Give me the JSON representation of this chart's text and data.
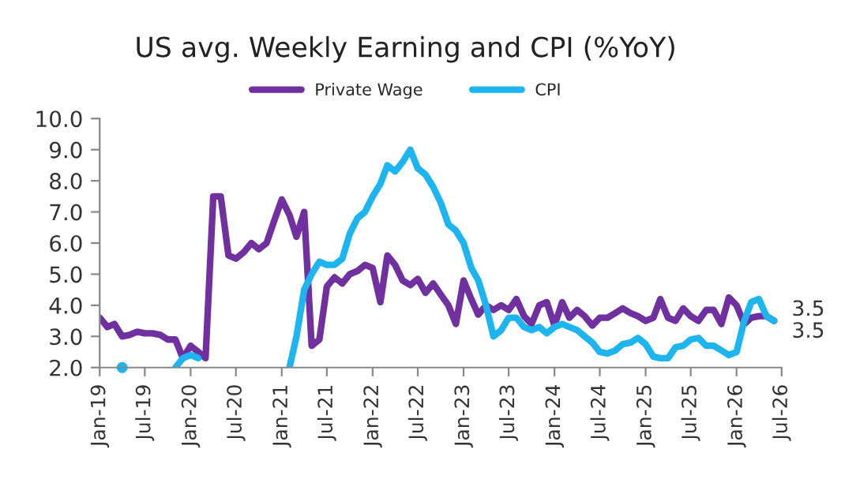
{
  "chart_data": {
    "type": "line",
    "title": "US avg. Weekly Earning and CPI (%YoY)",
    "x": [
      "2019-01",
      "2019-02",
      "2019-03",
      "2019-04",
      "2019-05",
      "2019-06",
      "2019-07",
      "2019-08",
      "2019-09",
      "2019-10",
      "2019-11",
      "2019-12",
      "2020-01",
      "2020-02",
      "2020-03",
      "2020-04",
      "2020-05",
      "2020-06",
      "2020-07",
      "2020-08",
      "2020-09",
      "2020-10",
      "2020-11",
      "2020-12",
      "2021-01",
      "2021-02",
      "2021-03",
      "2021-04",
      "2021-05",
      "2021-06",
      "2021-07",
      "2021-08",
      "2021-09",
      "2021-10",
      "2021-11",
      "2021-12",
      "2022-01",
      "2022-02",
      "2022-03",
      "2022-04",
      "2022-05",
      "2022-06",
      "2022-07",
      "2022-08",
      "2022-09",
      "2022-10",
      "2022-11",
      "2022-12",
      "2023-01",
      "2023-02",
      "2023-03",
      "2023-04",
      "2023-05",
      "2023-06",
      "2023-07",
      "2023-08",
      "2023-09",
      "2023-10",
      "2023-11",
      "2023-12",
      "2024-01",
      "2024-02",
      "2024-03",
      "2024-04",
      "2024-05",
      "2024-06",
      "2024-07",
      "2024-08",
      "2024-09",
      "2024-10",
      "2024-11",
      "2024-12",
      "2025-01",
      "2025-02",
      "2025-03",
      "2025-04",
      "2025-05",
      "2025-06",
      "2025-07",
      "2025-08",
      "2025-09",
      "2025-10",
      "2025-11",
      "2025-12",
      "2026-01",
      "2026-02",
      "2026-03",
      "2026-04",
      "2026-05",
      "2026-06"
    ],
    "series": [
      {
        "name": "Private Wage",
        "color": "#7030a0",
        "values": [
          3.6,
          3.3,
          3.4,
          3.0,
          3.05,
          3.15,
          3.1,
          3.1,
          3.05,
          2.9,
          2.9,
          2.3,
          2.7,
          2.5,
          2.3,
          7.5,
          7.5,
          5.6,
          5.5,
          5.7,
          6.0,
          5.8,
          6.0,
          6.7,
          7.4,
          6.9,
          6.2,
          7.0,
          2.7,
          2.9,
          4.6,
          4.9,
          4.7,
          5.0,
          5.1,
          5.3,
          5.2,
          4.1,
          5.6,
          5.3,
          4.8,
          4.65,
          4.85,
          4.4,
          4.7,
          4.35,
          4.0,
          3.4,
          4.8,
          4.2,
          3.7,
          4.0,
          3.85,
          4.0,
          3.85,
          4.2,
          3.65,
          3.4,
          4.0,
          4.1,
          3.35,
          4.1,
          3.6,
          3.85,
          3.65,
          3.35,
          3.6,
          3.6,
          3.75,
          3.9,
          3.75,
          3.65,
          3.5,
          3.6,
          4.2,
          3.6,
          3.5,
          3.9,
          3.65,
          3.5,
          3.85,
          3.85,
          3.4,
          4.25,
          4.0,
          3.4,
          3.6,
          3.65,
          3.65,
          3.5
        ],
        "value_labels": [
          null,
          null,
          null,
          null,
          null,
          null,
          null,
          null,
          null,
          null,
          null,
          null,
          null,
          null,
          null,
          null,
          null,
          null,
          null,
          null,
          null,
          null,
          null,
          null,
          null,
          null,
          null,
          null,
          null,
          null,
          null,
          null,
          null,
          null,
          null,
          null,
          null,
          null,
          null,
          null,
          null,
          null,
          null,
          null,
          null,
          null,
          null,
          null,
          null,
          null,
          null,
          null,
          null,
          null,
          null,
          null,
          null,
          null,
          null,
          null,
          null,
          null,
          null,
          null,
          null,
          null,
          null,
          null,
          null,
          null,
          null,
          null,
          null,
          null,
          null,
          null,
          null,
          null,
          null,
          null,
          null,
          null,
          null,
          null,
          null,
          null,
          null,
          null,
          null,
          "3.5"
        ]
      },
      {
        "name": "CPI",
        "color": "#1cb5f0",
        "values": [
          null,
          null,
          null,
          2.0,
          null,
          null,
          null,
          null,
          null,
          null,
          2.0,
          2.3,
          2.4,
          2.3,
          null,
          null,
          null,
          null,
          null,
          null,
          null,
          null,
          null,
          null,
          null,
          2.0,
          3.0,
          4.5,
          5.0,
          5.4,
          5.3,
          5.3,
          5.5,
          6.3,
          6.8,
          7.0,
          7.5,
          7.9,
          8.5,
          8.3,
          8.6,
          9.0,
          8.4,
          8.2,
          7.8,
          7.3,
          6.6,
          6.4,
          6.0,
          5.2,
          4.8,
          4.0,
          3.0,
          3.2,
          3.6,
          3.6,
          3.3,
          3.2,
          3.3,
          3.1,
          3.3,
          3.4,
          3.3,
          3.2,
          3.0,
          2.8,
          2.5,
          2.45,
          2.55,
          2.75,
          2.8,
          2.95,
          2.75,
          2.35,
          2.3,
          2.3,
          2.65,
          2.7,
          2.9,
          2.95,
          2.7,
          2.7,
          2.55,
          2.4,
          2.5,
          3.5,
          4.1,
          4.2,
          3.65,
          3.5
        ],
        "value_labels": [
          null,
          null,
          null,
          null,
          null,
          null,
          null,
          null,
          null,
          null,
          null,
          null,
          null,
          null,
          null,
          null,
          null,
          null,
          null,
          null,
          null,
          null,
          null,
          null,
          null,
          null,
          null,
          null,
          null,
          null,
          null,
          null,
          null,
          null,
          null,
          null,
          null,
          null,
          null,
          null,
          null,
          null,
          null,
          null,
          null,
          null,
          null,
          null,
          null,
          null,
          null,
          null,
          null,
          null,
          null,
          null,
          null,
          null,
          null,
          null,
          null,
          null,
          null,
          null,
          null,
          null,
          null,
          null,
          null,
          null,
          null,
          null,
          null,
          null,
          null,
          null,
          null,
          null,
          null,
          null,
          null,
          null,
          null,
          null,
          null,
          null,
          null,
          null,
          null,
          "3.5"
        ]
      }
    ],
    "xlim": [
      "2019-01",
      "2026-07"
    ],
    "xticks": [
      {
        "value": "2019-01",
        "label": "Jan-19"
      },
      {
        "value": "2019-07",
        "label": "Jul-19"
      },
      {
        "value": "2020-01",
        "label": "Jan-20"
      },
      {
        "value": "2020-07",
        "label": "Jul-20"
      },
      {
        "value": "2021-01",
        "label": "Jan-21"
      },
      {
        "value": "2021-07",
        "label": "Jul-21"
      },
      {
        "value": "2022-01",
        "label": "Jan-22"
      },
      {
        "value": "2022-07",
        "label": "Jul-22"
      },
      {
        "value": "2023-01",
        "label": "Jan-23"
      },
      {
        "value": "2023-07",
        "label": "Jul-23"
      },
      {
        "value": "2024-01",
        "label": "Jan-24"
      },
      {
        "value": "2024-07",
        "label": "Jul-24"
      },
      {
        "value": "2025-01",
        "label": "Jan-25"
      },
      {
        "value": "2025-07",
        "label": "Jul-25"
      },
      {
        "value": "2026-01",
        "label": "Jan-26"
      },
      {
        "value": "2026-07",
        "label": "Jul-26"
      }
    ],
    "ylim": [
      2.0,
      10.0
    ],
    "yticks": [
      {
        "value": 2.0,
        "label": "2.0"
      },
      {
        "value": 3.0,
        "label": "3.0"
      },
      {
        "value": 4.0,
        "label": "4.0"
      },
      {
        "value": 5.0,
        "label": "5.0"
      },
      {
        "value": 6.0,
        "label": "6.0"
      },
      {
        "value": 7.0,
        "label": "7.0"
      },
      {
        "value": 8.0,
        "label": "8.0"
      },
      {
        "value": 9.0,
        "label": "9.0"
      },
      {
        "value": 10.0,
        "label": "10.0"
      }
    ],
    "grid": false,
    "legend": "top",
    "marker": "none",
    "line_style": "solid"
  }
}
